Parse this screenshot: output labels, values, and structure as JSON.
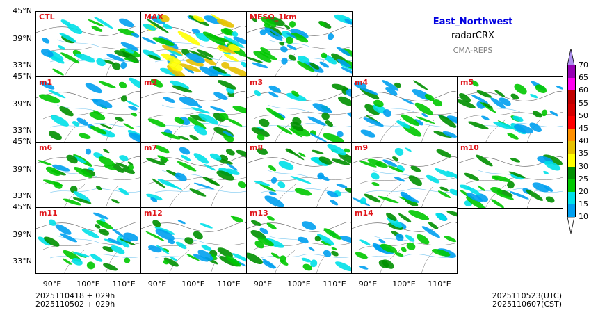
{
  "header": {
    "region": "East_Northwest",
    "product": "radarCRX",
    "model": "CMA-REPS"
  },
  "panels": [
    {
      "label": "CTL"
    },
    {
      "label": "MAX"
    },
    {
      "label": "MESO_1km"
    },
    {
      "label": "m1"
    },
    {
      "label": "m2"
    },
    {
      "label": "m3"
    },
    {
      "label": "m4"
    },
    {
      "label": "m5"
    },
    {
      "label": "m6"
    },
    {
      "label": "m7"
    },
    {
      "label": "m8"
    },
    {
      "label": "m9"
    },
    {
      "label": "m10"
    },
    {
      "label": "m11"
    },
    {
      "label": "m12"
    },
    {
      "label": "m13"
    },
    {
      "label": "m14"
    }
  ],
  "axes": {
    "lat_ticks": [
      "45°N",
      "39°N",
      "33°N"
    ],
    "lon_ticks": [
      "90°E",
      "100°E",
      "110°E"
    ]
  },
  "colorbar": {
    "labels": [
      "10",
      "15",
      "20",
      "25",
      "30",
      "35",
      "40",
      "45",
      "50",
      "55",
      "60",
      "65",
      "70"
    ],
    "colors": [
      "#00a0f0",
      "#00e0e8",
      "#00c800",
      "#009000",
      "#ffff00",
      "#e6c000",
      "#ff9000",
      "#ff0000",
      "#d60000",
      "#c00000",
      "#ff00f0",
      "#9600b4",
      "#ad90f0"
    ]
  },
  "footer": {
    "init_line1": "2025110418  +  029h",
    "init_line2": "2025110502  +  029h",
    "valid_utc": "2025110523(UTC)",
    "valid_cst": "2025110607(CST)"
  },
  "colors": {
    "label_red": "#e0161b",
    "title_blue": "#0000e0",
    "model_gray": "#808080"
  }
}
